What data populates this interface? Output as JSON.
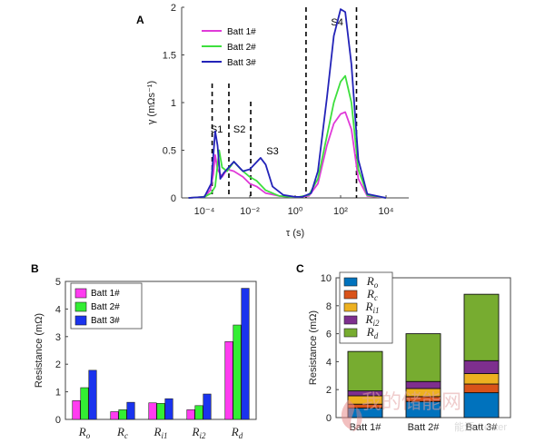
{
  "chart_data": [
    {
      "panel": "A",
      "type": "line",
      "xlabel": "τ (s)",
      "ylabel": "γ (mΩs⁻¹)",
      "x_scale": "log",
      "xlim": [
        1e-05,
        100000.0
      ],
      "ylim": [
        0,
        2
      ],
      "x_ticks": [
        "10⁻⁴",
        "10⁻²",
        "10⁰",
        "10²",
        "10⁴"
      ],
      "y_ticks": [
        "0",
        "0.5",
        "1",
        "1.5",
        "2"
      ],
      "region_labels": [
        "S1",
        "S2",
        "S3",
        "S4"
      ],
      "region_boundaries": [
        0.00022,
        0.0012,
        0.011,
        3,
        500
      ],
      "legend_position": "top-left",
      "series": [
        {
          "name": "Batt 1#",
          "color": "#e03ad8",
          "points": [
            [
              2e-05,
              0
            ],
            [
              0.0001,
              0.01
            ],
            [
              0.00018,
              0.08
            ],
            [
              0.00025,
              0.25
            ],
            [
              0.0003,
              0.45
            ],
            [
              0.00038,
              0.3
            ],
            [
              0.0006,
              0.22
            ],
            [
              0.001,
              0.3
            ],
            [
              0.002,
              0.28
            ],
            [
              0.005,
              0.22
            ],
            [
              0.01,
              0.15
            ],
            [
              0.02,
              0.12
            ],
            [
              0.05,
              0.05
            ],
            [
              0.2,
              0.02
            ],
            [
              0.6,
              0.01
            ],
            [
              1.5,
              0.01
            ],
            [
              4,
              0.02
            ],
            [
              10,
              0.15
            ],
            [
              25,
              0.55
            ],
            [
              50,
              0.78
            ],
            [
              100,
              0.88
            ],
            [
              160,
              0.9
            ],
            [
              300,
              0.72
            ],
            [
              600,
              0.2
            ],
            [
              1500,
              0.02
            ],
            [
              10000,
              0
            ]
          ]
        },
        {
          "name": "Batt 2#",
          "color": "#3ddf3d",
          "points": [
            [
              2e-05,
              0
            ],
            [
              0.0001,
              0.01
            ],
            [
              0.0002,
              0.05
            ],
            [
              0.0003,
              0.12
            ],
            [
              0.00045,
              0.5
            ],
            [
              0.0006,
              0.32
            ],
            [
              0.001,
              0.28
            ],
            [
              0.002,
              0.38
            ],
            [
              0.004,
              0.3
            ],
            [
              0.01,
              0.22
            ],
            [
              0.02,
              0.18
            ],
            [
              0.05,
              0.08
            ],
            [
              0.2,
              0.02
            ],
            [
              0.6,
              0.01
            ],
            [
              1.5,
              0.01
            ],
            [
              4,
              0.03
            ],
            [
              10,
              0.2
            ],
            [
              25,
              0.65
            ],
            [
              50,
              1.0
            ],
            [
              100,
              1.22
            ],
            [
              160,
              1.28
            ],
            [
              300,
              1.0
            ],
            [
              600,
              0.3
            ],
            [
              1500,
              0.03
            ],
            [
              10000,
              0
            ]
          ]
        },
        {
          "name": "Batt 3#",
          "color": "#2323b8",
          "points": [
            [
              2e-05,
              0
            ],
            [
              0.0001,
              0.01
            ],
            [
              0.0002,
              0.15
            ],
            [
              0.0003,
              0.7
            ],
            [
              0.00038,
              0.55
            ],
            [
              0.0005,
              0.2
            ],
            [
              0.0007,
              0.26
            ],
            [
              0.002,
              0.38
            ],
            [
              0.005,
              0.28
            ],
            [
              0.01,
              0.3
            ],
            [
              0.03,
              0.42
            ],
            [
              0.05,
              0.35
            ],
            [
              0.1,
              0.12
            ],
            [
              0.3,
              0.03
            ],
            [
              1,
              0.01
            ],
            [
              2,
              0.01
            ],
            [
              5,
              0.05
            ],
            [
              10,
              0.28
            ],
            [
              25,
              1.05
            ],
            [
              50,
              1.7
            ],
            [
              100,
              1.98
            ],
            [
              160,
              1.95
            ],
            [
              300,
              1.4
            ],
            [
              600,
              0.4
            ],
            [
              1500,
              0.04
            ],
            [
              10000,
              0
            ]
          ]
        }
      ]
    },
    {
      "panel": "B",
      "type": "bar",
      "ylabel": "Resistance (mΩ)",
      "ylim": [
        0,
        5
      ],
      "y_ticks": [
        "0",
        "1",
        "2",
        "3",
        "4",
        "5"
      ],
      "categories": [
        "R_o",
        "R_c",
        "R_i1",
        "R_i2",
        "R_d"
      ],
      "legend_position": "top-left",
      "series": [
        {
          "name": "Batt 1#",
          "color": "#ff3cf0",
          "values": [
            0.68,
            0.28,
            0.6,
            0.35,
            2.82
          ]
        },
        {
          "name": "Batt 2#",
          "color": "#33ee33",
          "values": [
            1.15,
            0.35,
            0.58,
            0.5,
            3.42
          ]
        },
        {
          "name": "Batt 3#",
          "color": "#1a33ee",
          "values": [
            1.78,
            0.62,
            0.75,
            0.92,
            4.75
          ]
        }
      ]
    },
    {
      "panel": "C",
      "type": "bar",
      "stacked": true,
      "ylabel": "Resistance (mΩ)",
      "ylim": [
        0,
        10
      ],
      "y_ticks": [
        "0",
        "2",
        "4",
        "6",
        "8",
        "10"
      ],
      "categories": [
        "Batt 1#",
        "Batt 2#",
        "Batt 3#"
      ],
      "legend_position": "top-left",
      "series": [
        {
          "name": "R_o",
          "color": "#0072bd",
          "values": [
            0.68,
            1.15,
            1.78
          ]
        },
        {
          "name": "R_c",
          "color": "#d95319",
          "values": [
            0.28,
            0.35,
            0.62
          ]
        },
        {
          "name": "R_i1",
          "color": "#edb120",
          "values": [
            0.6,
            0.58,
            0.75
          ]
        },
        {
          "name": "R_i2",
          "color": "#7e2f8e",
          "values": [
            0.35,
            0.5,
            0.92
          ]
        },
        {
          "name": "R_d",
          "color": "#77ac30",
          "values": [
            2.82,
            3.42,
            4.75
          ]
        }
      ]
    }
  ],
  "watermark": {
    "text": "我的储能网",
    "sub": "能源 Center"
  }
}
